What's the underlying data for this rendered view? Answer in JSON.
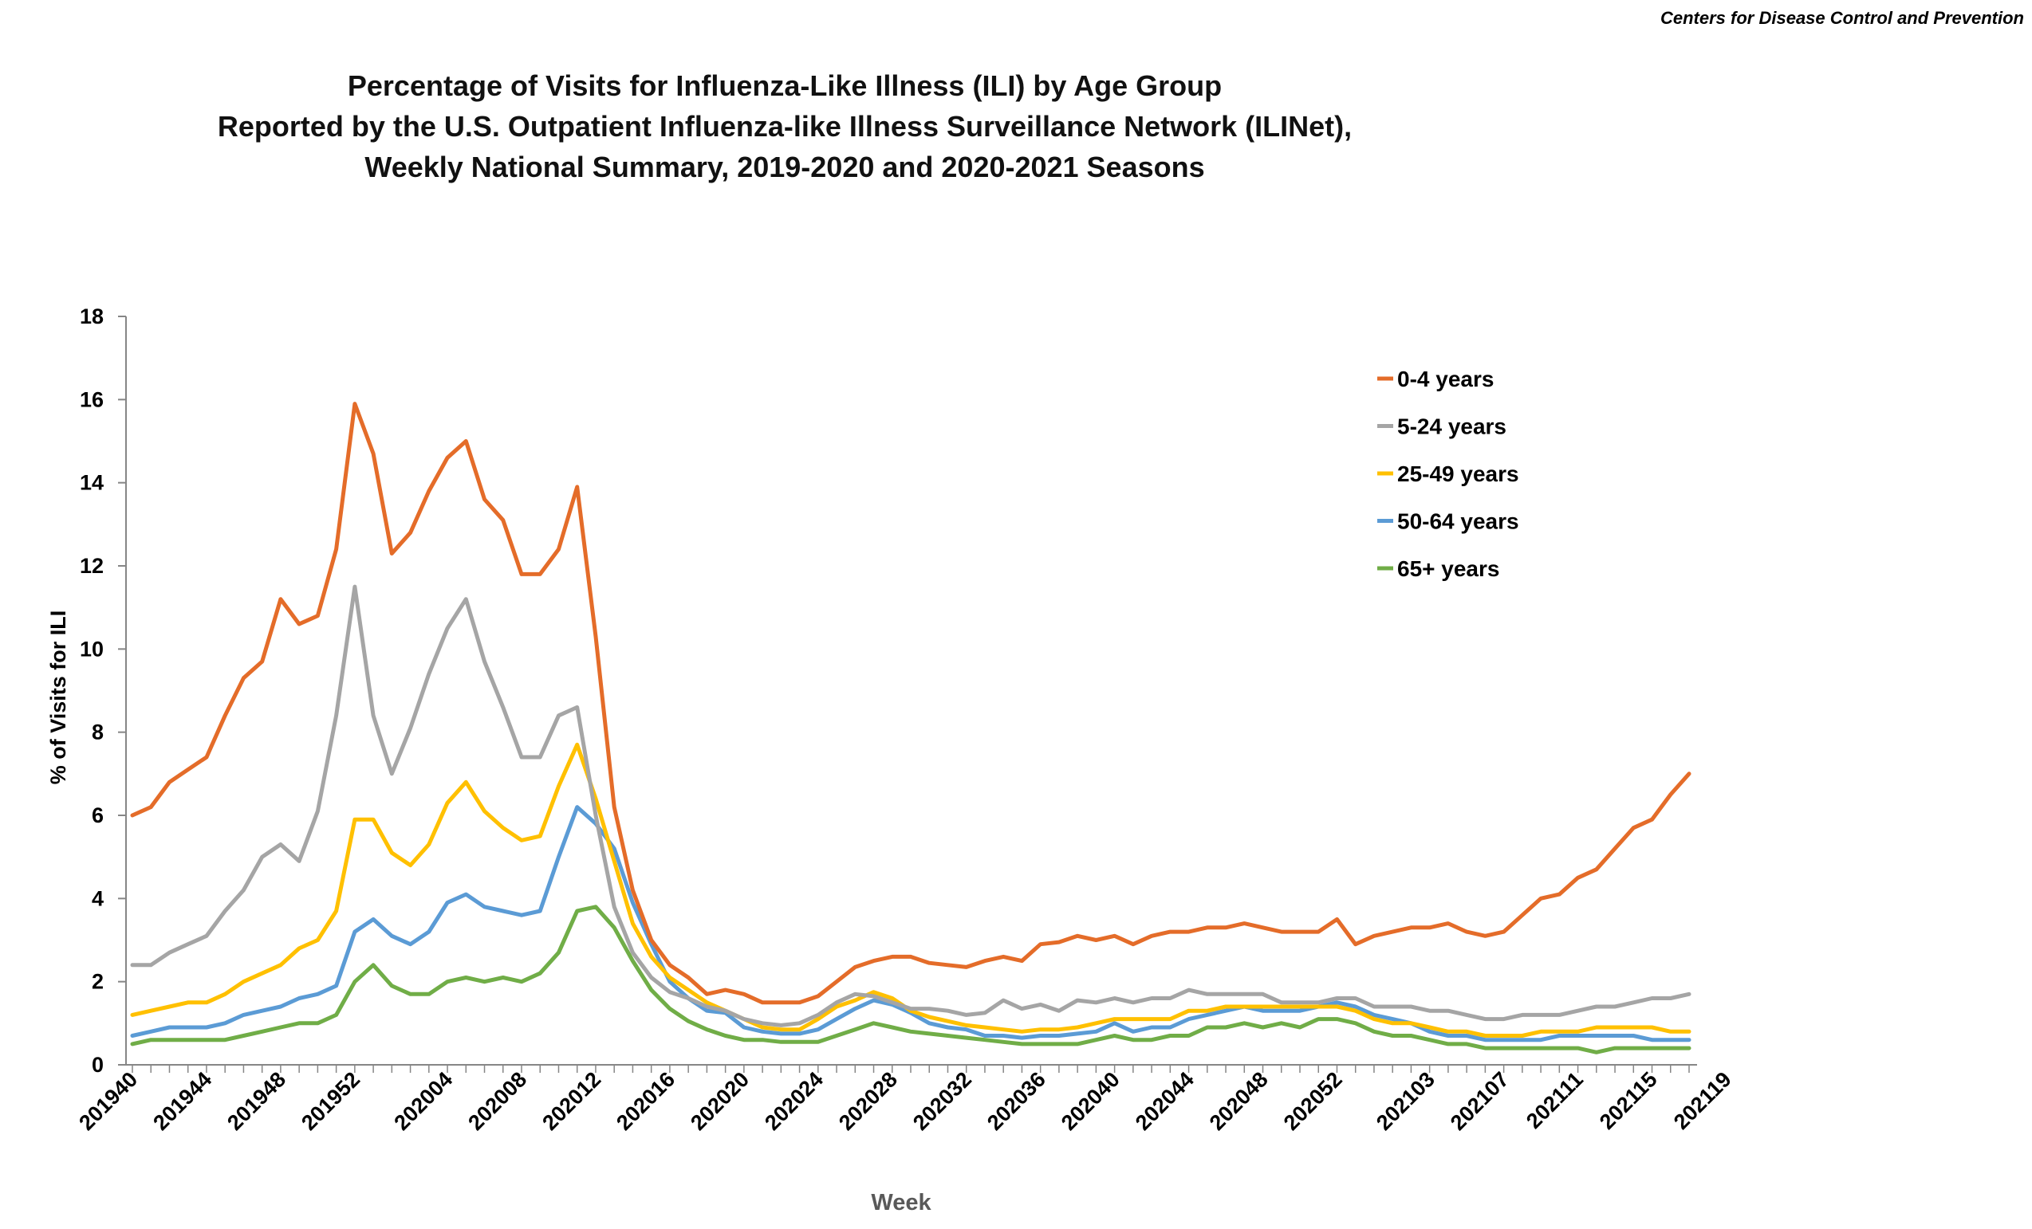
{
  "credit": "Centers for Disease Control and Prevention",
  "chart_data": {
    "type": "line",
    "title_lines": [
      "Percentage of Visits for Influenza-Like Illness (ILI) by Age Group",
      "Reported by the U.S. Outpatient Influenza-like Illness Surveillance Network (ILINet),",
      "Weekly National Summary, 2019-2020 and 2020-2021 Seasons"
    ],
    "xlabel": "Week",
    "ylabel": "% of Visits for ILI",
    "ylim": [
      0,
      18
    ],
    "yticks": [
      0,
      2,
      4,
      6,
      8,
      10,
      12,
      14,
      16,
      18
    ],
    "grid": false,
    "legend_position": "top-right",
    "x_start_label": "201940",
    "x_tick_labels": [
      "201940",
      "201944",
      "201948",
      "201952",
      "202004",
      "202008",
      "202012",
      "202016",
      "202020",
      "202024",
      "202028",
      "202032",
      "202036",
      "202040",
      "202044",
      "202048",
      "202052",
      "202103",
      "202107",
      "202111",
      "202115",
      "202119"
    ],
    "x_tick_indices": [
      0,
      4,
      8,
      12,
      17,
      21,
      25,
      29,
      33,
      37,
      41,
      45,
      49,
      53,
      57,
      61,
      65,
      70,
      74,
      78,
      82,
      86
    ],
    "series": [
      {
        "name": "0-4 years",
        "color": "#E46C29",
        "values": [
          6.0,
          6.2,
          6.8,
          7.1,
          7.4,
          8.4,
          9.3,
          9.7,
          11.2,
          10.6,
          10.8,
          12.4,
          15.9,
          14.7,
          12.3,
          12.8,
          13.8,
          14.6,
          15.0,
          13.6,
          13.1,
          11.8,
          11.8,
          12.4,
          13.9,
          10.3,
          6.2,
          4.2,
          3.0,
          2.4,
          2.1,
          1.7,
          1.8,
          1.7,
          1.5,
          1.5,
          1.5,
          1.65,
          2.0,
          2.35,
          2.5,
          2.6,
          2.6,
          2.45,
          2.4,
          2.35,
          2.5,
          2.6,
          2.5,
          2.9,
          2.95,
          3.1,
          3.0,
          3.1,
          2.9,
          3.1,
          3.2,
          3.2,
          3.3,
          3.3,
          3.4,
          3.3,
          3.2,
          3.2,
          3.2,
          3.5,
          2.9,
          3.1,
          3.2,
          3.3,
          3.3,
          3.4,
          3.2,
          3.1,
          3.2,
          3.6,
          4.0,
          4.1,
          4.5,
          4.7,
          5.2,
          5.7,
          5.9,
          6.5,
          7.0
        ]
      },
      {
        "name": "5-24 years",
        "color": "#A5A5A5",
        "values": [
          2.4,
          2.4,
          2.7,
          2.9,
          3.1,
          3.7,
          4.2,
          5.0,
          5.3,
          4.9,
          6.1,
          8.4,
          11.5,
          8.4,
          7.0,
          8.1,
          9.4,
          10.5,
          11.2,
          9.7,
          8.6,
          7.4,
          7.4,
          8.4,
          8.6,
          6.0,
          3.8,
          2.7,
          2.1,
          1.75,
          1.6,
          1.4,
          1.3,
          1.1,
          1.0,
          0.95,
          1.0,
          1.2,
          1.5,
          1.7,
          1.65,
          1.5,
          1.35,
          1.35,
          1.3,
          1.2,
          1.25,
          1.55,
          1.35,
          1.45,
          1.3,
          1.55,
          1.5,
          1.6,
          1.5,
          1.6,
          1.6,
          1.8,
          1.7,
          1.7,
          1.7,
          1.7,
          1.5,
          1.5,
          1.5,
          1.6,
          1.6,
          1.4,
          1.4,
          1.4,
          1.3,
          1.3,
          1.2,
          1.1,
          1.1,
          1.2,
          1.2,
          1.2,
          1.3,
          1.4,
          1.4,
          1.5,
          1.6,
          1.6,
          1.7
        ]
      },
      {
        "name": "25-49 years",
        "color": "#FFC000",
        "values": [
          1.2,
          1.3,
          1.4,
          1.5,
          1.5,
          1.7,
          2.0,
          2.2,
          2.4,
          2.8,
          3.0,
          3.7,
          5.9,
          5.9,
          5.1,
          4.8,
          5.3,
          6.3,
          6.8,
          6.1,
          5.7,
          5.4,
          5.5,
          6.7,
          7.7,
          6.4,
          4.9,
          3.4,
          2.6,
          2.1,
          1.8,
          1.5,
          1.3,
          1.1,
          0.9,
          0.85,
          0.85,
          1.1,
          1.4,
          1.55,
          1.75,
          1.6,
          1.3,
          1.15,
          1.05,
          0.95,
          0.9,
          0.85,
          0.8,
          0.85,
          0.85,
          0.9,
          1.0,
          1.1,
          1.1,
          1.1,
          1.1,
          1.3,
          1.3,
          1.4,
          1.4,
          1.4,
          1.4,
          1.4,
          1.4,
          1.4,
          1.3,
          1.1,
          1.0,
          1.0,
          0.9,
          0.8,
          0.8,
          0.7,
          0.7,
          0.7,
          0.8,
          0.8,
          0.8,
          0.9,
          0.9,
          0.9,
          0.9,
          0.8,
          0.8
        ]
      },
      {
        "name": "50-64 years",
        "color": "#5B9BD5",
        "values": [
          0.7,
          0.8,
          0.9,
          0.9,
          0.9,
          1.0,
          1.2,
          1.3,
          1.4,
          1.6,
          1.7,
          1.9,
          3.2,
          3.5,
          3.1,
          2.9,
          3.2,
          3.9,
          4.1,
          3.8,
          3.7,
          3.6,
          3.7,
          5.0,
          6.2,
          5.8,
          5.2,
          3.9,
          2.9,
          2.0,
          1.6,
          1.3,
          1.25,
          0.9,
          0.8,
          0.75,
          0.75,
          0.85,
          1.1,
          1.35,
          1.55,
          1.45,
          1.25,
          1.0,
          0.9,
          0.85,
          0.7,
          0.7,
          0.65,
          0.7,
          0.7,
          0.75,
          0.8,
          1.0,
          0.8,
          0.9,
          0.9,
          1.1,
          1.2,
          1.3,
          1.4,
          1.3,
          1.3,
          1.3,
          1.4,
          1.5,
          1.4,
          1.2,
          1.1,
          1.0,
          0.8,
          0.7,
          0.7,
          0.6,
          0.6,
          0.6,
          0.6,
          0.7,
          0.7,
          0.7,
          0.7,
          0.7,
          0.6,
          0.6,
          0.6
        ]
      },
      {
        "name": "65+ years",
        "color": "#70AD47",
        "values": [
          0.5,
          0.6,
          0.6,
          0.6,
          0.6,
          0.6,
          0.7,
          0.8,
          0.9,
          1.0,
          1.0,
          1.2,
          2.0,
          2.4,
          1.9,
          1.7,
          1.7,
          2.0,
          2.1,
          2.0,
          2.1,
          2.0,
          2.2,
          2.7,
          3.7,
          3.8,
          3.3,
          2.5,
          1.8,
          1.35,
          1.05,
          0.85,
          0.7,
          0.6,
          0.6,
          0.55,
          0.55,
          0.55,
          0.7,
          0.85,
          1.0,
          0.9,
          0.8,
          0.75,
          0.7,
          0.65,
          0.6,
          0.55,
          0.5,
          0.5,
          0.5,
          0.5,
          0.6,
          0.7,
          0.6,
          0.6,
          0.7,
          0.7,
          0.9,
          0.9,
          1.0,
          0.9,
          1.0,
          0.9,
          1.1,
          1.1,
          1.0,
          0.8,
          0.7,
          0.7,
          0.6,
          0.5,
          0.5,
          0.4,
          0.4,
          0.4,
          0.4,
          0.4,
          0.4,
          0.3,
          0.4,
          0.4,
          0.4,
          0.4,
          0.4
        ]
      }
    ]
  }
}
